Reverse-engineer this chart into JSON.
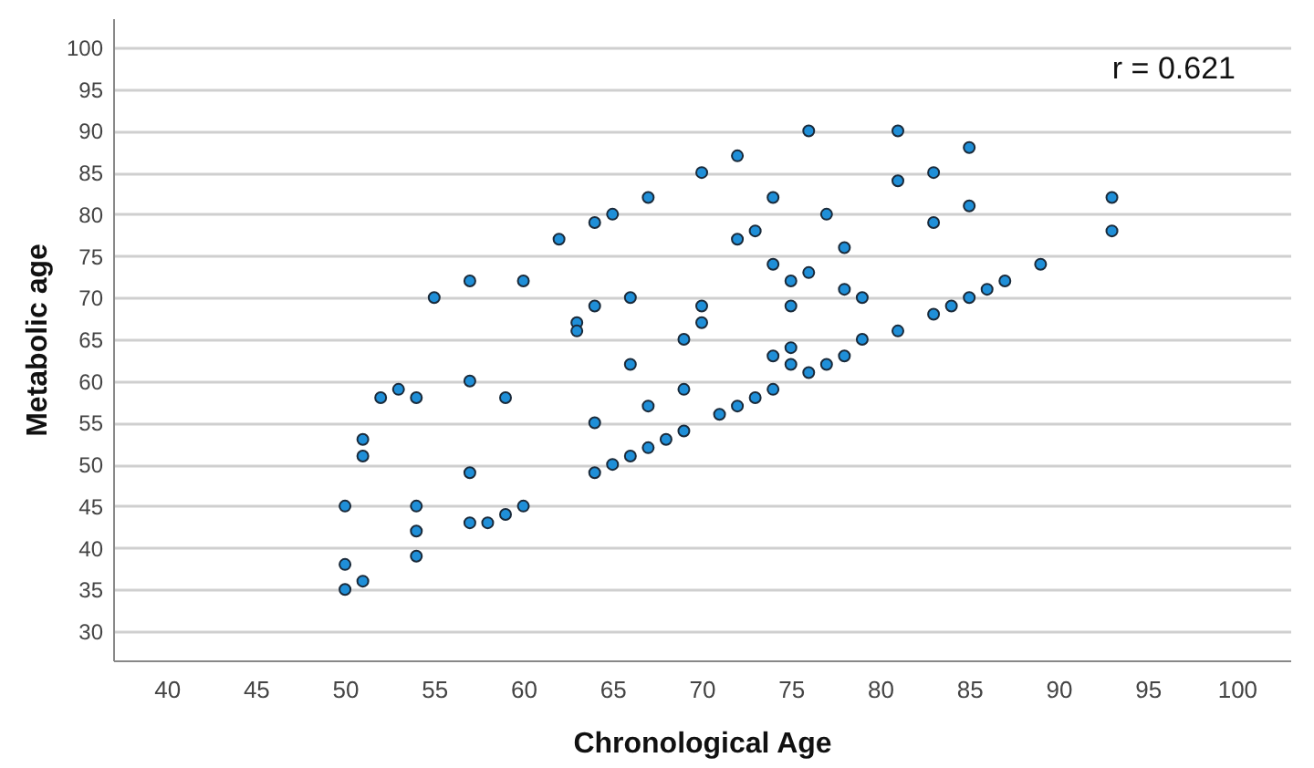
{
  "chart_data": {
    "type": "scatter",
    "xlabel": "Chronological Age",
    "ylabel": "Metabolic age",
    "annotations": [
      "r = 0.621"
    ],
    "x": [
      50,
      50,
      50,
      51,
      51,
      51,
      52,
      53,
      54,
      54,
      54,
      54,
      55,
      57,
      57,
      57,
      57,
      58,
      59,
      59,
      60,
      60,
      62,
      63,
      63,
      64,
      64,
      64,
      64,
      65,
      65,
      66,
      66,
      66,
      67,
      67,
      67,
      68,
      69,
      69,
      69,
      70,
      70,
      70,
      71,
      72,
      72,
      72,
      73,
      73,
      74,
      74,
      74,
      74,
      75,
      75,
      75,
      75,
      76,
      76,
      76,
      77,
      77,
      78,
      78,
      78,
      79,
      79,
      81,
      81,
      81,
      83,
      83,
      83,
      84,
      85,
      85,
      85,
      86,
      87,
      89,
      93,
      93
    ],
    "series": [
      {
        "color": "#1f8fd8",
        "values": [
          45,
          38,
          35,
          36,
          53,
          51,
          58,
          59,
          58,
          45,
          42,
          39,
          70,
          72,
          60,
          49,
          43,
          43,
          44,
          58,
          45,
          72,
          77,
          67,
          66,
          79,
          69,
          55,
          49,
          80,
          50,
          70,
          62,
          51,
          82,
          57,
          52,
          53,
          65,
          59,
          54,
          85,
          69,
          67,
          56,
          87,
          77,
          57,
          78,
          58,
          82,
          74,
          63,
          59,
          72,
          69,
          64,
          62,
          90,
          73,
          61,
          80,
          62,
          76,
          71,
          63,
          70,
          65,
          90,
          84,
          66,
          85,
          79,
          68,
          69,
          88,
          81,
          70,
          71,
          72,
          74,
          82,
          78
        ]
      }
    ],
    "xlim": [
      37,
      103
    ],
    "xticks": [
      40,
      45,
      50,
      55,
      60,
      65,
      70,
      75,
      80,
      85,
      90,
      95,
      100
    ],
    "ylim": [
      26.5,
      103.5
    ],
    "yticks": [
      30,
      35,
      40,
      45,
      50,
      55,
      60,
      65,
      70,
      75,
      80,
      85,
      90,
      95,
      100
    ],
    "grid": "y",
    "marker": "circle"
  }
}
